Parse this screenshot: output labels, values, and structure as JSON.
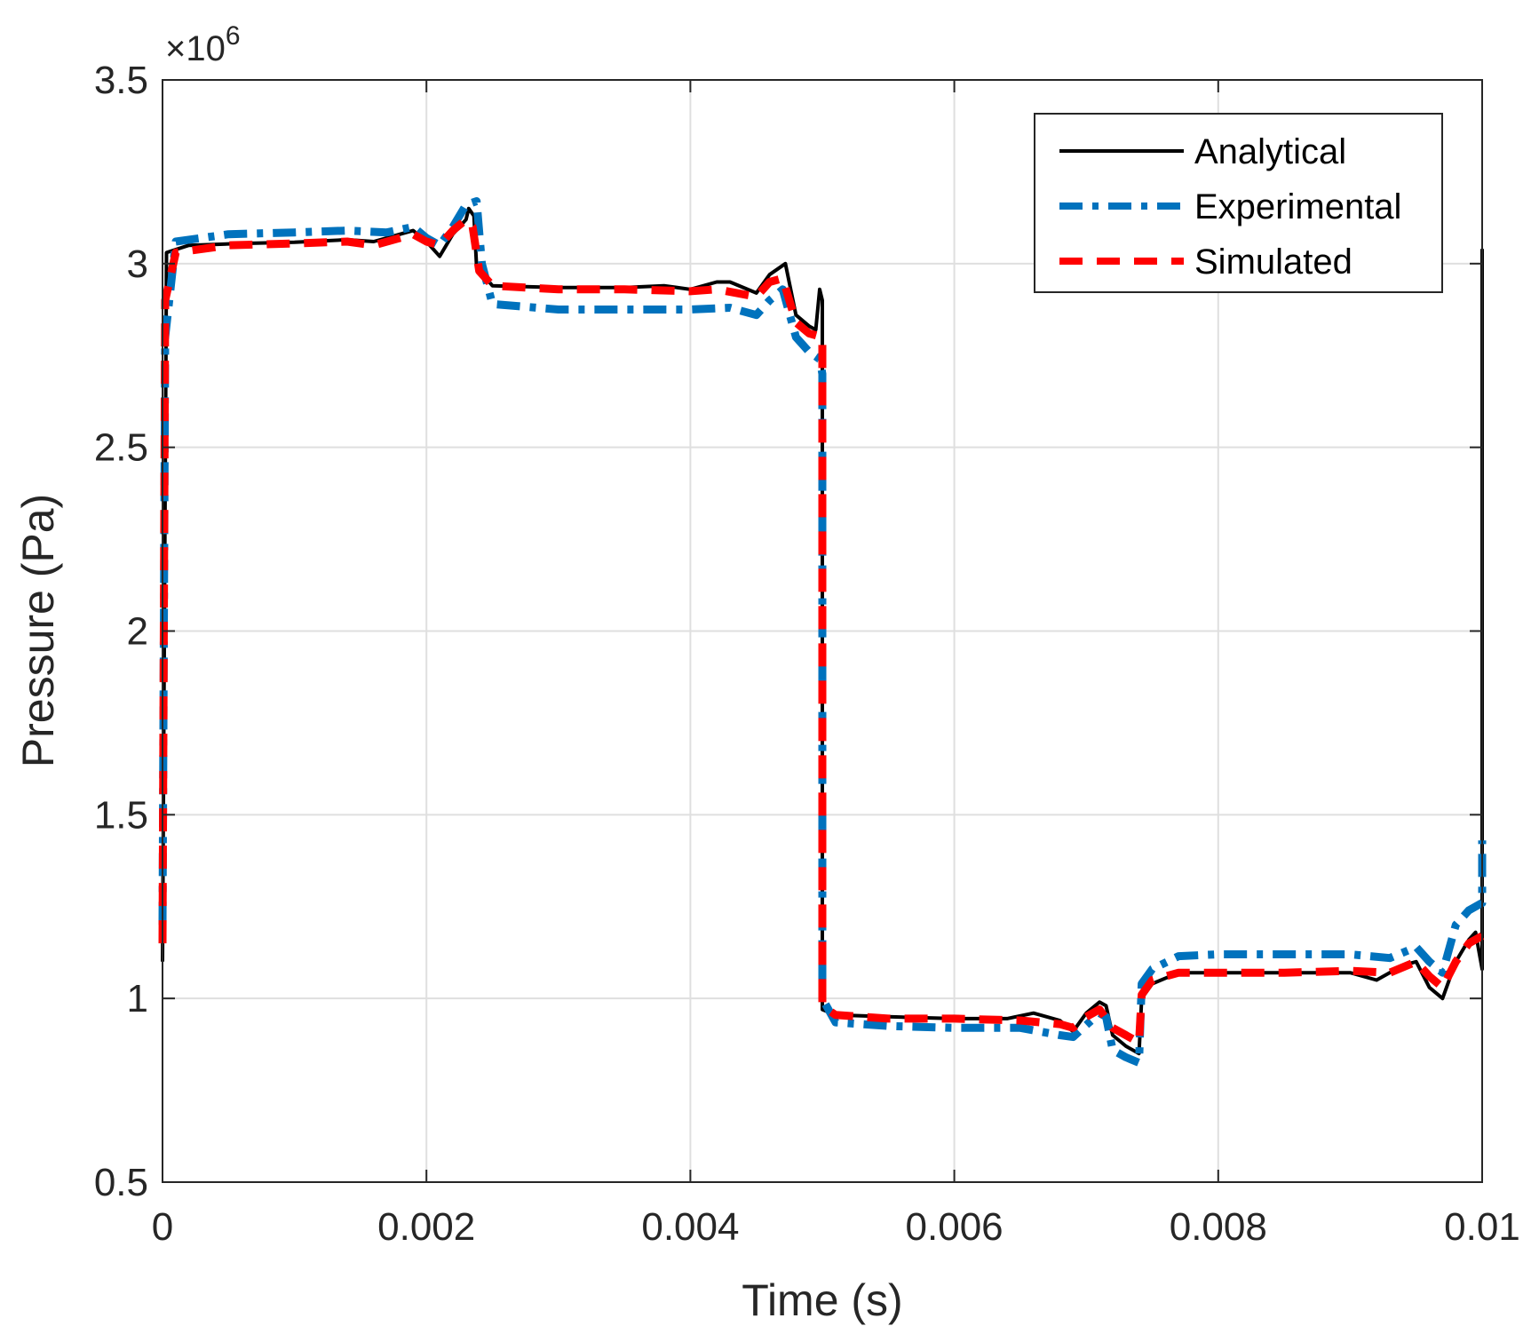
{
  "chart_data": {
    "type": "line",
    "xlabel": "Time (s)",
    "ylabel": "Pressure (Pa)",
    "exponent": "×10",
    "exponent_power": "6",
    "xlim": [
      0,
      0.01
    ],
    "ylim": [
      0.5,
      3.5
    ],
    "x_ticks": [
      {
        "value": 0,
        "label": "0"
      },
      {
        "value": 0.002,
        "label": "0.002"
      },
      {
        "value": 0.004,
        "label": "0.004"
      },
      {
        "value": 0.006,
        "label": "0.006"
      },
      {
        "value": 0.008,
        "label": "0.008"
      },
      {
        "value": 0.01,
        "label": "0.01"
      }
    ],
    "y_ticks": [
      {
        "value": 0.5,
        "label": "0.5"
      },
      {
        "value": 1,
        "label": "1"
      },
      {
        "value": 1.5,
        "label": "1.5"
      },
      {
        "value": 2,
        "label": "2"
      },
      {
        "value": 2.5,
        "label": "2.5"
      },
      {
        "value": 3,
        "label": "3"
      },
      {
        "value": 3.5,
        "label": "3.5"
      }
    ],
    "grid": true,
    "legend_position": "top-right",
    "series": [
      {
        "name": "Analytical",
        "color": "#000000",
        "style": "solid",
        "points": [
          [
            0,
            1.1
          ],
          [
            3e-05,
            3.03
          ],
          [
            0.0002,
            3.05
          ],
          [
            0.0006,
            3.055
          ],
          [
            0.001,
            3.058
          ],
          [
            0.0014,
            3.065
          ],
          [
            0.0016,
            3.06
          ],
          [
            0.0018,
            3.08
          ],
          [
            0.0019,
            3.09
          ],
          [
            0.002,
            3.06
          ],
          [
            0.0021,
            3.02
          ],
          [
            0.0022,
            3.08
          ],
          [
            0.0023,
            3.12
          ],
          [
            0.00232,
            3.15
          ],
          [
            0.00236,
            3.13
          ],
          [
            0.00238,
            2.99
          ],
          [
            0.0025,
            2.94
          ],
          [
            0.003,
            2.935
          ],
          [
            0.0035,
            2.935
          ],
          [
            0.0038,
            2.94
          ],
          [
            0.004,
            2.93
          ],
          [
            0.0042,
            2.95
          ],
          [
            0.0043,
            2.95
          ],
          [
            0.0045,
            2.92
          ],
          [
            0.0046,
            2.97
          ],
          [
            0.00472,
            3.0
          ],
          [
            0.0048,
            2.86
          ],
          [
            0.0049,
            2.83
          ],
          [
            0.00495,
            2.82
          ],
          [
            0.00498,
            2.93
          ],
          [
            0.005,
            2.9
          ],
          [
            0.005,
            0.97
          ],
          [
            0.0051,
            0.955
          ],
          [
            0.0055,
            0.95
          ],
          [
            0.006,
            0.945
          ],
          [
            0.0064,
            0.945
          ],
          [
            0.0066,
            0.96
          ],
          [
            0.0068,
            0.94
          ],
          [
            0.0069,
            0.91
          ],
          [
            0.007,
            0.96
          ],
          [
            0.0071,
            0.99
          ],
          [
            0.00715,
            0.98
          ],
          [
            0.0072,
            0.9
          ],
          [
            0.0073,
            0.87
          ],
          [
            0.0074,
            0.85
          ],
          [
            0.00742,
            1.0
          ],
          [
            0.0075,
            1.04
          ],
          [
            0.0077,
            1.07
          ],
          [
            0.008,
            1.07
          ],
          [
            0.0085,
            1.07
          ],
          [
            0.009,
            1.07
          ],
          [
            0.0092,
            1.05
          ],
          [
            0.0094,
            1.09
          ],
          [
            0.0095,
            1.1
          ],
          [
            0.0096,
            1.03
          ],
          [
            0.0097,
            1.0
          ],
          [
            0.0098,
            1.1
          ],
          [
            0.0099,
            1.16
          ],
          [
            0.00995,
            1.18
          ],
          [
            0.00998,
            1.12
          ],
          [
            0.01,
            1.08
          ],
          [
            0.01,
            3.04
          ]
        ]
      },
      {
        "name": "Experimental",
        "color": "#0072BD",
        "style": "dashdot",
        "points": [
          [
            0,
            1.2
          ],
          [
            2e-05,
            2.8
          ],
          [
            0.0001,
            3.06
          ],
          [
            0.0005,
            3.08
          ],
          [
            0.001,
            3.085
          ],
          [
            0.0014,
            3.09
          ],
          [
            0.0017,
            3.085
          ],
          [
            0.0019,
            3.1
          ],
          [
            0.002,
            3.07
          ],
          [
            0.0021,
            3.05
          ],
          [
            0.0022,
            3.1
          ],
          [
            0.0023,
            3.16
          ],
          [
            0.00238,
            3.17
          ],
          [
            0.00242,
            3.0
          ],
          [
            0.0025,
            2.89
          ],
          [
            0.003,
            2.875
          ],
          [
            0.0035,
            2.875
          ],
          [
            0.004,
            2.875
          ],
          [
            0.0043,
            2.88
          ],
          [
            0.0045,
            2.86
          ],
          [
            0.0046,
            2.9
          ],
          [
            0.0047,
            2.93
          ],
          [
            0.0048,
            2.8
          ],
          [
            0.0049,
            2.76
          ],
          [
            0.00498,
            2.74
          ],
          [
            0.005,
            2.7
          ],
          [
            0.005,
            1.0
          ],
          [
            0.0051,
            0.935
          ],
          [
            0.0055,
            0.925
          ],
          [
            0.006,
            0.92
          ],
          [
            0.0065,
            0.92
          ],
          [
            0.0068,
            0.9
          ],
          [
            0.0069,
            0.895
          ],
          [
            0.0071,
            0.96
          ],
          [
            0.00715,
            0.95
          ],
          [
            0.0072,
            0.86
          ],
          [
            0.0073,
            0.84
          ],
          [
            0.0074,
            0.825
          ],
          [
            0.00742,
            1.04
          ],
          [
            0.0075,
            1.08
          ],
          [
            0.0077,
            1.115
          ],
          [
            0.008,
            1.12
          ],
          [
            0.0085,
            1.12
          ],
          [
            0.009,
            1.12
          ],
          [
            0.0093,
            1.11
          ],
          [
            0.0095,
            1.14
          ],
          [
            0.0096,
            1.1
          ],
          [
            0.0097,
            1.07
          ],
          [
            0.0098,
            1.2
          ],
          [
            0.0099,
            1.24
          ],
          [
            0.01,
            1.26
          ],
          [
            0.01,
            1.43
          ]
        ]
      },
      {
        "name": "Simulated",
        "color": "#FF0000",
        "style": "dashed",
        "points": [
          [
            0,
            1.15
          ],
          [
            2e-05,
            2.9
          ],
          [
            0.0001,
            3.03
          ],
          [
            0.0005,
            3.05
          ],
          [
            0.001,
            3.055
          ],
          [
            0.0014,
            3.06
          ],
          [
            0.0016,
            3.05
          ],
          [
            0.0018,
            3.07
          ],
          [
            0.0019,
            3.08
          ],
          [
            0.002,
            3.06
          ],
          [
            0.0021,
            3.05
          ],
          [
            0.0022,
            3.09
          ],
          [
            0.0023,
            3.12
          ],
          [
            0.00235,
            3.1
          ],
          [
            0.0024,
            2.98
          ],
          [
            0.0025,
            2.94
          ],
          [
            0.003,
            2.93
          ],
          [
            0.0035,
            2.93
          ],
          [
            0.004,
            2.925
          ],
          [
            0.0042,
            2.93
          ],
          [
            0.0045,
            2.91
          ],
          [
            0.0046,
            2.95
          ],
          [
            0.0047,
            2.96
          ],
          [
            0.0048,
            2.84
          ],
          [
            0.0049,
            2.81
          ],
          [
            0.005,
            2.8
          ],
          [
            0.005,
            0.98
          ],
          [
            0.0051,
            0.955
          ],
          [
            0.0055,
            0.945
          ],
          [
            0.006,
            0.945
          ],
          [
            0.0065,
            0.94
          ],
          [
            0.0068,
            0.93
          ],
          [
            0.0069,
            0.92
          ],
          [
            0.007,
            0.95
          ],
          [
            0.0071,
            0.97
          ],
          [
            0.0072,
            0.92
          ],
          [
            0.0073,
            0.9
          ],
          [
            0.0074,
            0.88
          ],
          [
            0.00742,
            1.01
          ],
          [
            0.0075,
            1.05
          ],
          [
            0.0077,
            1.07
          ],
          [
            0.008,
            1.07
          ],
          [
            0.0085,
            1.07
          ],
          [
            0.009,
            1.075
          ],
          [
            0.0093,
            1.07
          ],
          [
            0.0095,
            1.1
          ],
          [
            0.0096,
            1.06
          ],
          [
            0.0097,
            1.03
          ],
          [
            0.0098,
            1.1
          ],
          [
            0.0099,
            1.15
          ],
          [
            0.01,
            1.17
          ]
        ]
      }
    ]
  }
}
